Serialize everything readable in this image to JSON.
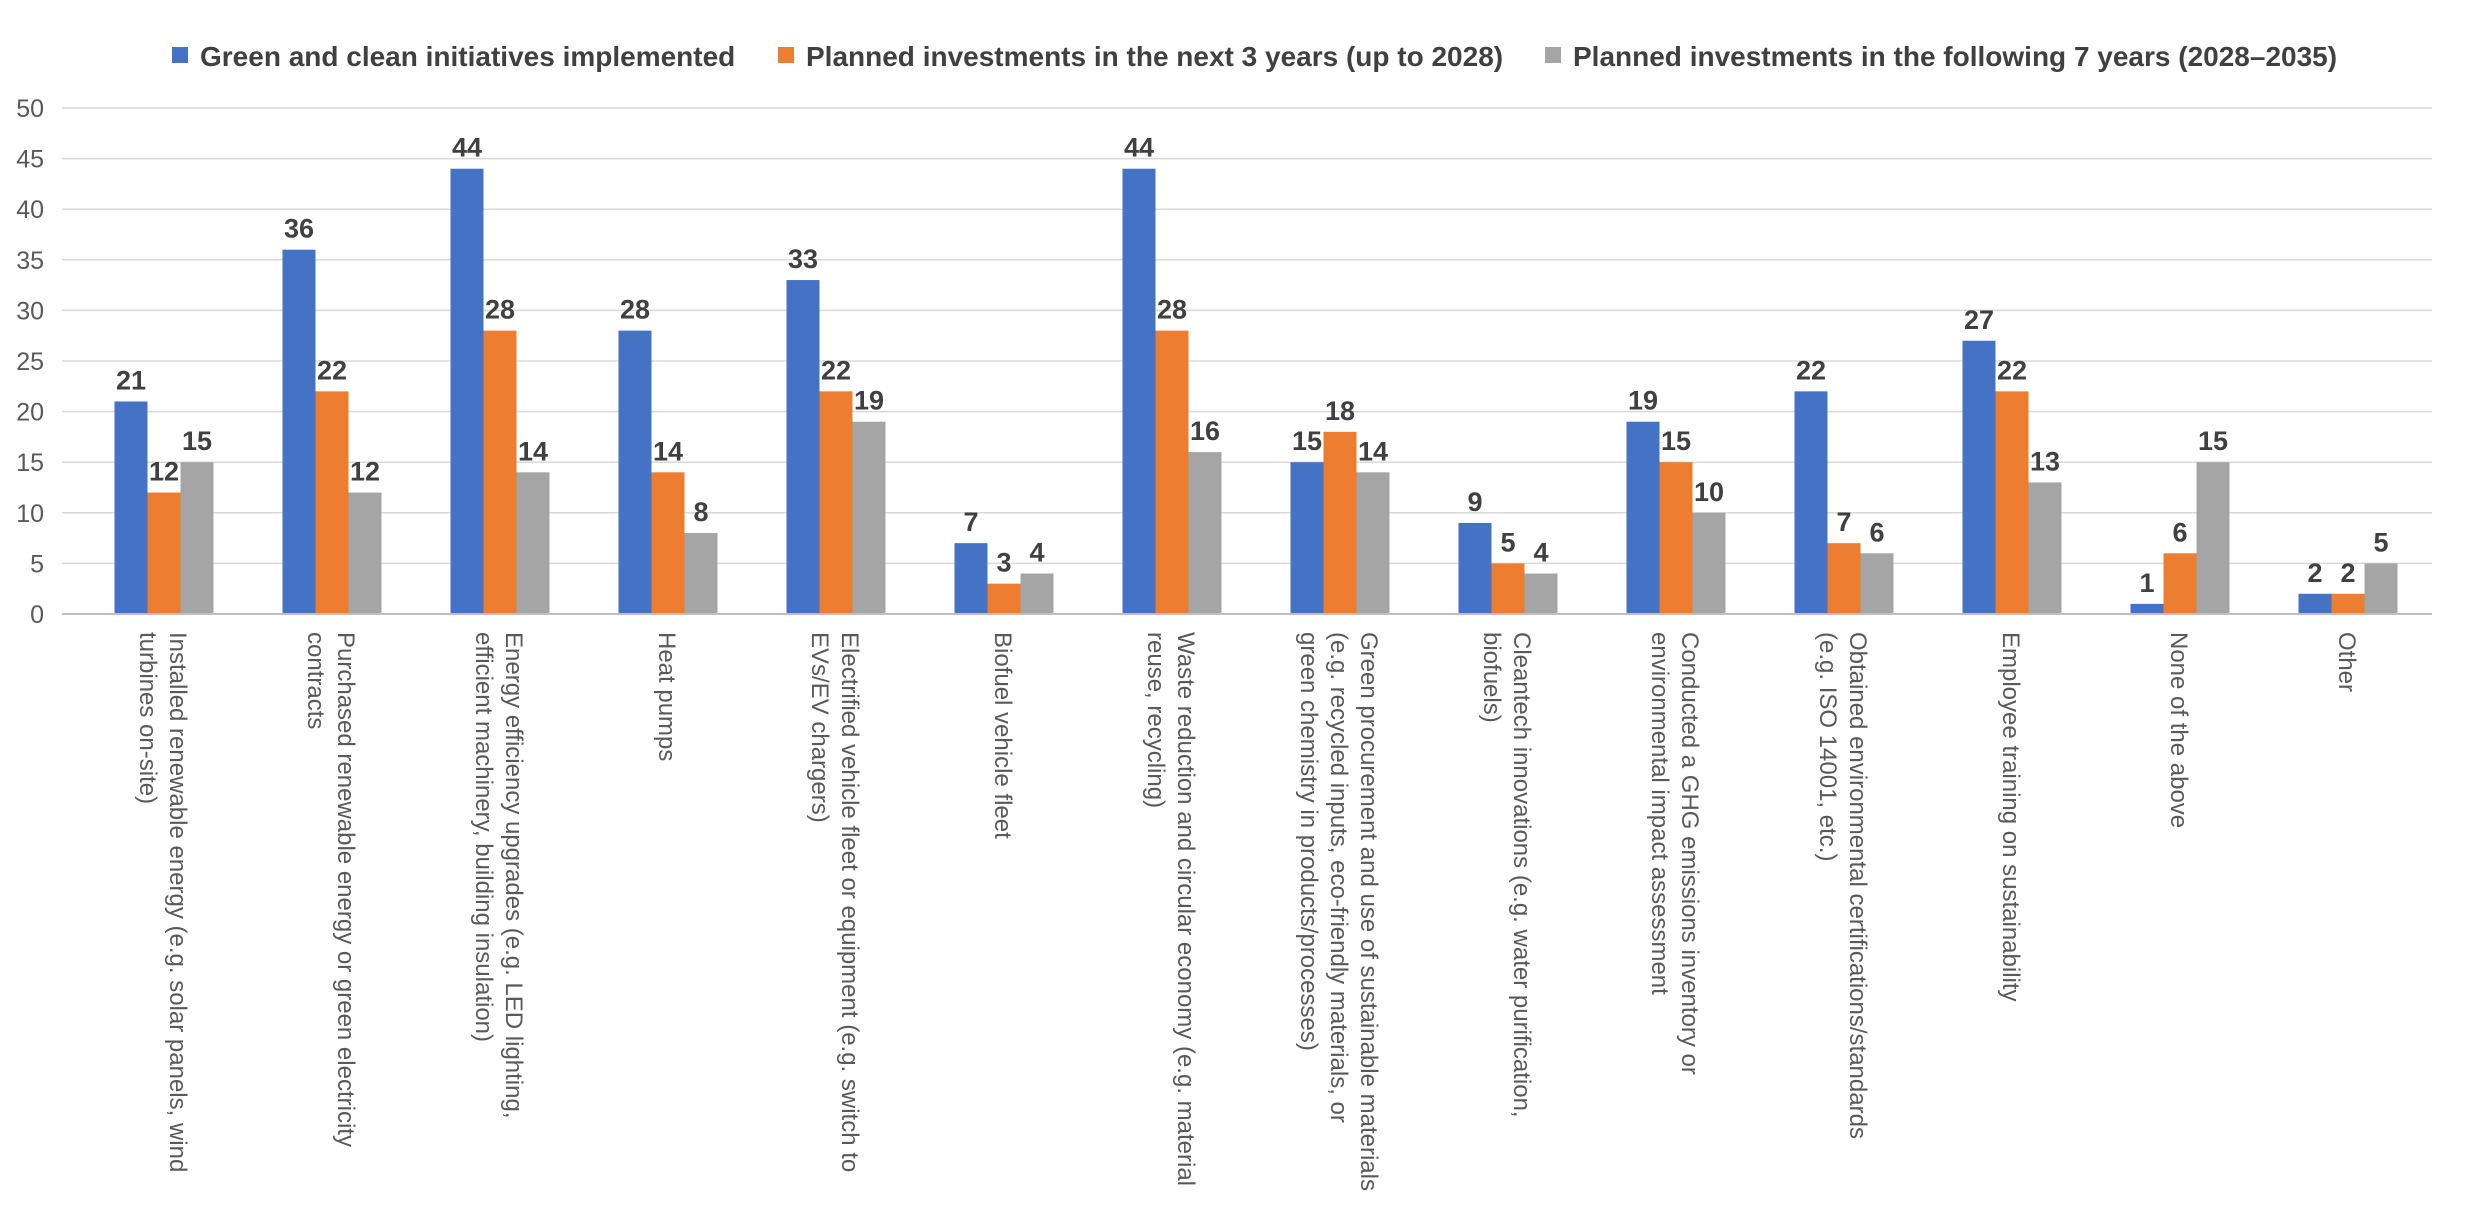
{
  "chart_data": {
    "type": "bar",
    "title": "",
    "xlabel": "",
    "ylabel": "",
    "ylim": [
      0,
      50
    ],
    "yticks": [
      0,
      5,
      10,
      15,
      20,
      25,
      30,
      35,
      40,
      45,
      50
    ],
    "grid": true,
    "legend_position": "top",
    "categories": [
      [
        "Installed renewable energy (e.g. solar panels, wind",
        "turbines on-site)"
      ],
      [
        "Purchased renewable energy or green electricity",
        "contracts"
      ],
      [
        "Energy efficiency upgrades (e.g. LED lighting,",
        "efficient machinery, building insulation)"
      ],
      [
        "Heat pumps"
      ],
      [
        "Electrified vehicle fleet or equipment (e.g. switch to",
        "EVs/EV chargers)"
      ],
      [
        "Biofuel vehicle fleet"
      ],
      [
        "Waste reduction and circular economy (e.g. material",
        "reuse, recycling)"
      ],
      [
        "Green procurement and use of sustainable materials",
        "(e.g. recycled inputs, eco-friendly materials, or",
        "green chemistry in products/processes)"
      ],
      [
        "Cleantech innovations (e.g. water purification,",
        "biofuels)"
      ],
      [
        "Conducted a GHG emissions inventory or",
        "environmental impact assessment"
      ],
      [
        "Obtained environmental certifications/standards",
        "(e.g. ISO 14001, etc.)"
      ],
      [
        "Employee training on sustainability"
      ],
      [
        "None of the above"
      ],
      [
        "Other"
      ]
    ],
    "series": [
      {
        "name": "Green and clean initiatives implemented",
        "color": "#4472c4",
        "values": [
          21,
          36,
          44,
          28,
          33,
          7,
          44,
          15,
          9,
          19,
          22,
          27,
          1,
          2
        ]
      },
      {
        "name": "Planned investments in the next 3 years (up to 2028)",
        "color": "#ed7d31",
        "values": [
          12,
          22,
          28,
          14,
          22,
          3,
          28,
          18,
          5,
          15,
          7,
          22,
          6,
          2
        ]
      },
      {
        "name": "Planned investments in the following 7 years (2028–2035)",
        "color": "#a5a5a5",
        "values": [
          15,
          12,
          14,
          8,
          19,
          4,
          16,
          14,
          4,
          10,
          6,
          13,
          15,
          5
        ]
      }
    ]
  }
}
